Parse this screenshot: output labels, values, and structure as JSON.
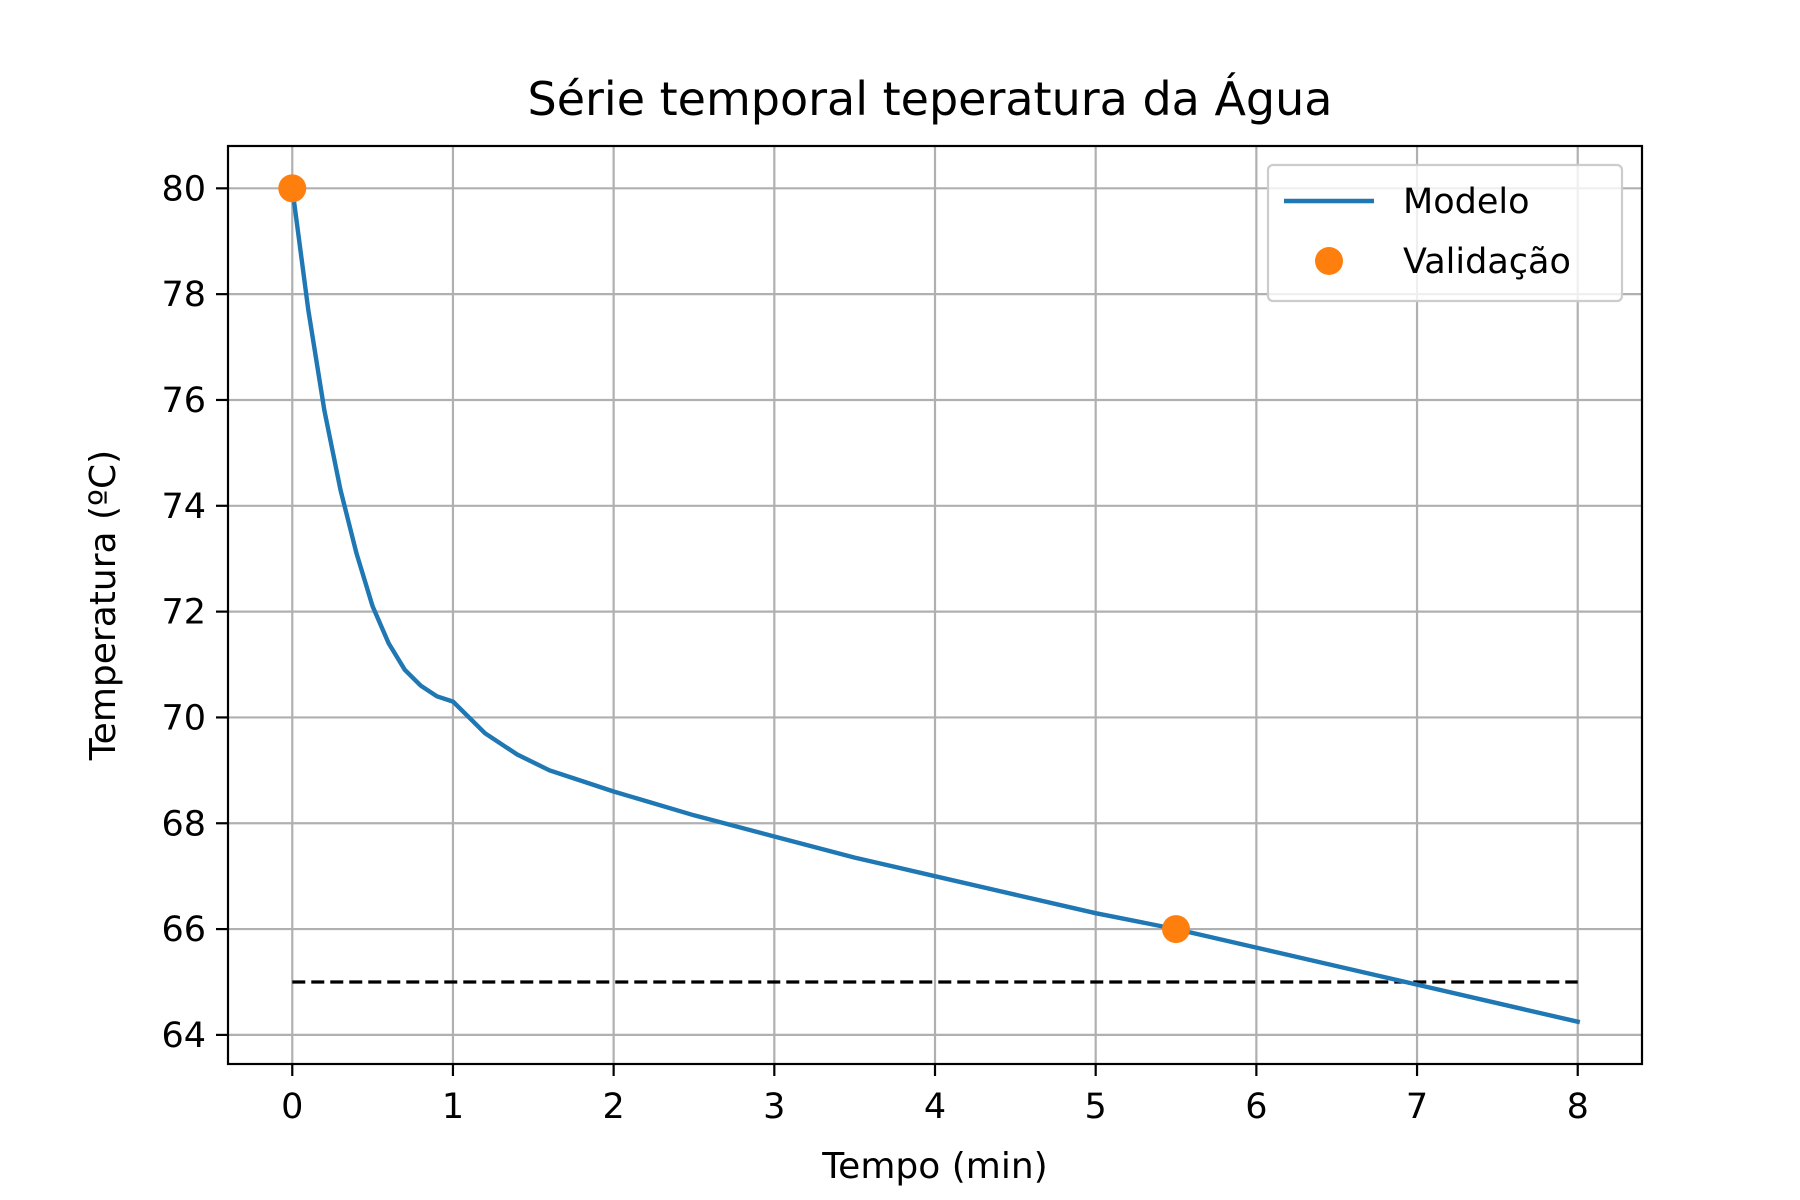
{
  "chart_data": {
    "type": "line",
    "title": "Série temporal teperatura da Água",
    "xlabel": "Tempo (min)",
    "ylabel": "Temperatura (ºC)",
    "xlim": [
      -0.4,
      8.4
    ],
    "ylim": [
      63.45,
      80.8
    ],
    "xticks": [
      0,
      1,
      2,
      3,
      4,
      5,
      6,
      7,
      8
    ],
    "yticks": [
      64,
      66,
      68,
      70,
      72,
      74,
      76,
      78,
      80
    ],
    "grid": true,
    "legend_position": "upper right",
    "series": [
      {
        "name": "Modelo",
        "kind": "line",
        "color": "#1f77b4",
        "x": [
          0,
          0.1,
          0.2,
          0.3,
          0.4,
          0.5,
          0.6,
          0.7,
          0.8,
          0.9,
          1.0,
          1.2,
          1.4,
          1.6,
          1.8,
          2.0,
          2.5,
          3.0,
          3.5,
          4.0,
          4.5,
          5.0,
          5.5,
          6.0,
          6.5,
          7.0,
          7.5,
          8.0
        ],
        "y": [
          80.0,
          77.7,
          75.8,
          74.3,
          73.1,
          72.1,
          71.4,
          70.9,
          70.6,
          70.4,
          70.3,
          69.7,
          69.3,
          69.0,
          68.8,
          68.6,
          68.15,
          67.75,
          67.35,
          67.0,
          66.65,
          66.3,
          66.0,
          65.65,
          65.3,
          64.95,
          64.6,
          64.25
        ]
      },
      {
        "name": "Validação",
        "kind": "scatter",
        "color": "#ff7f0e",
        "x": [
          0,
          5.5
        ],
        "y": [
          80,
          66
        ]
      },
      {
        "kind": "reference-line",
        "style": "dashed",
        "color": "#000000",
        "x": [
          0,
          8
        ],
        "y": [
          65,
          65
        ]
      }
    ]
  }
}
